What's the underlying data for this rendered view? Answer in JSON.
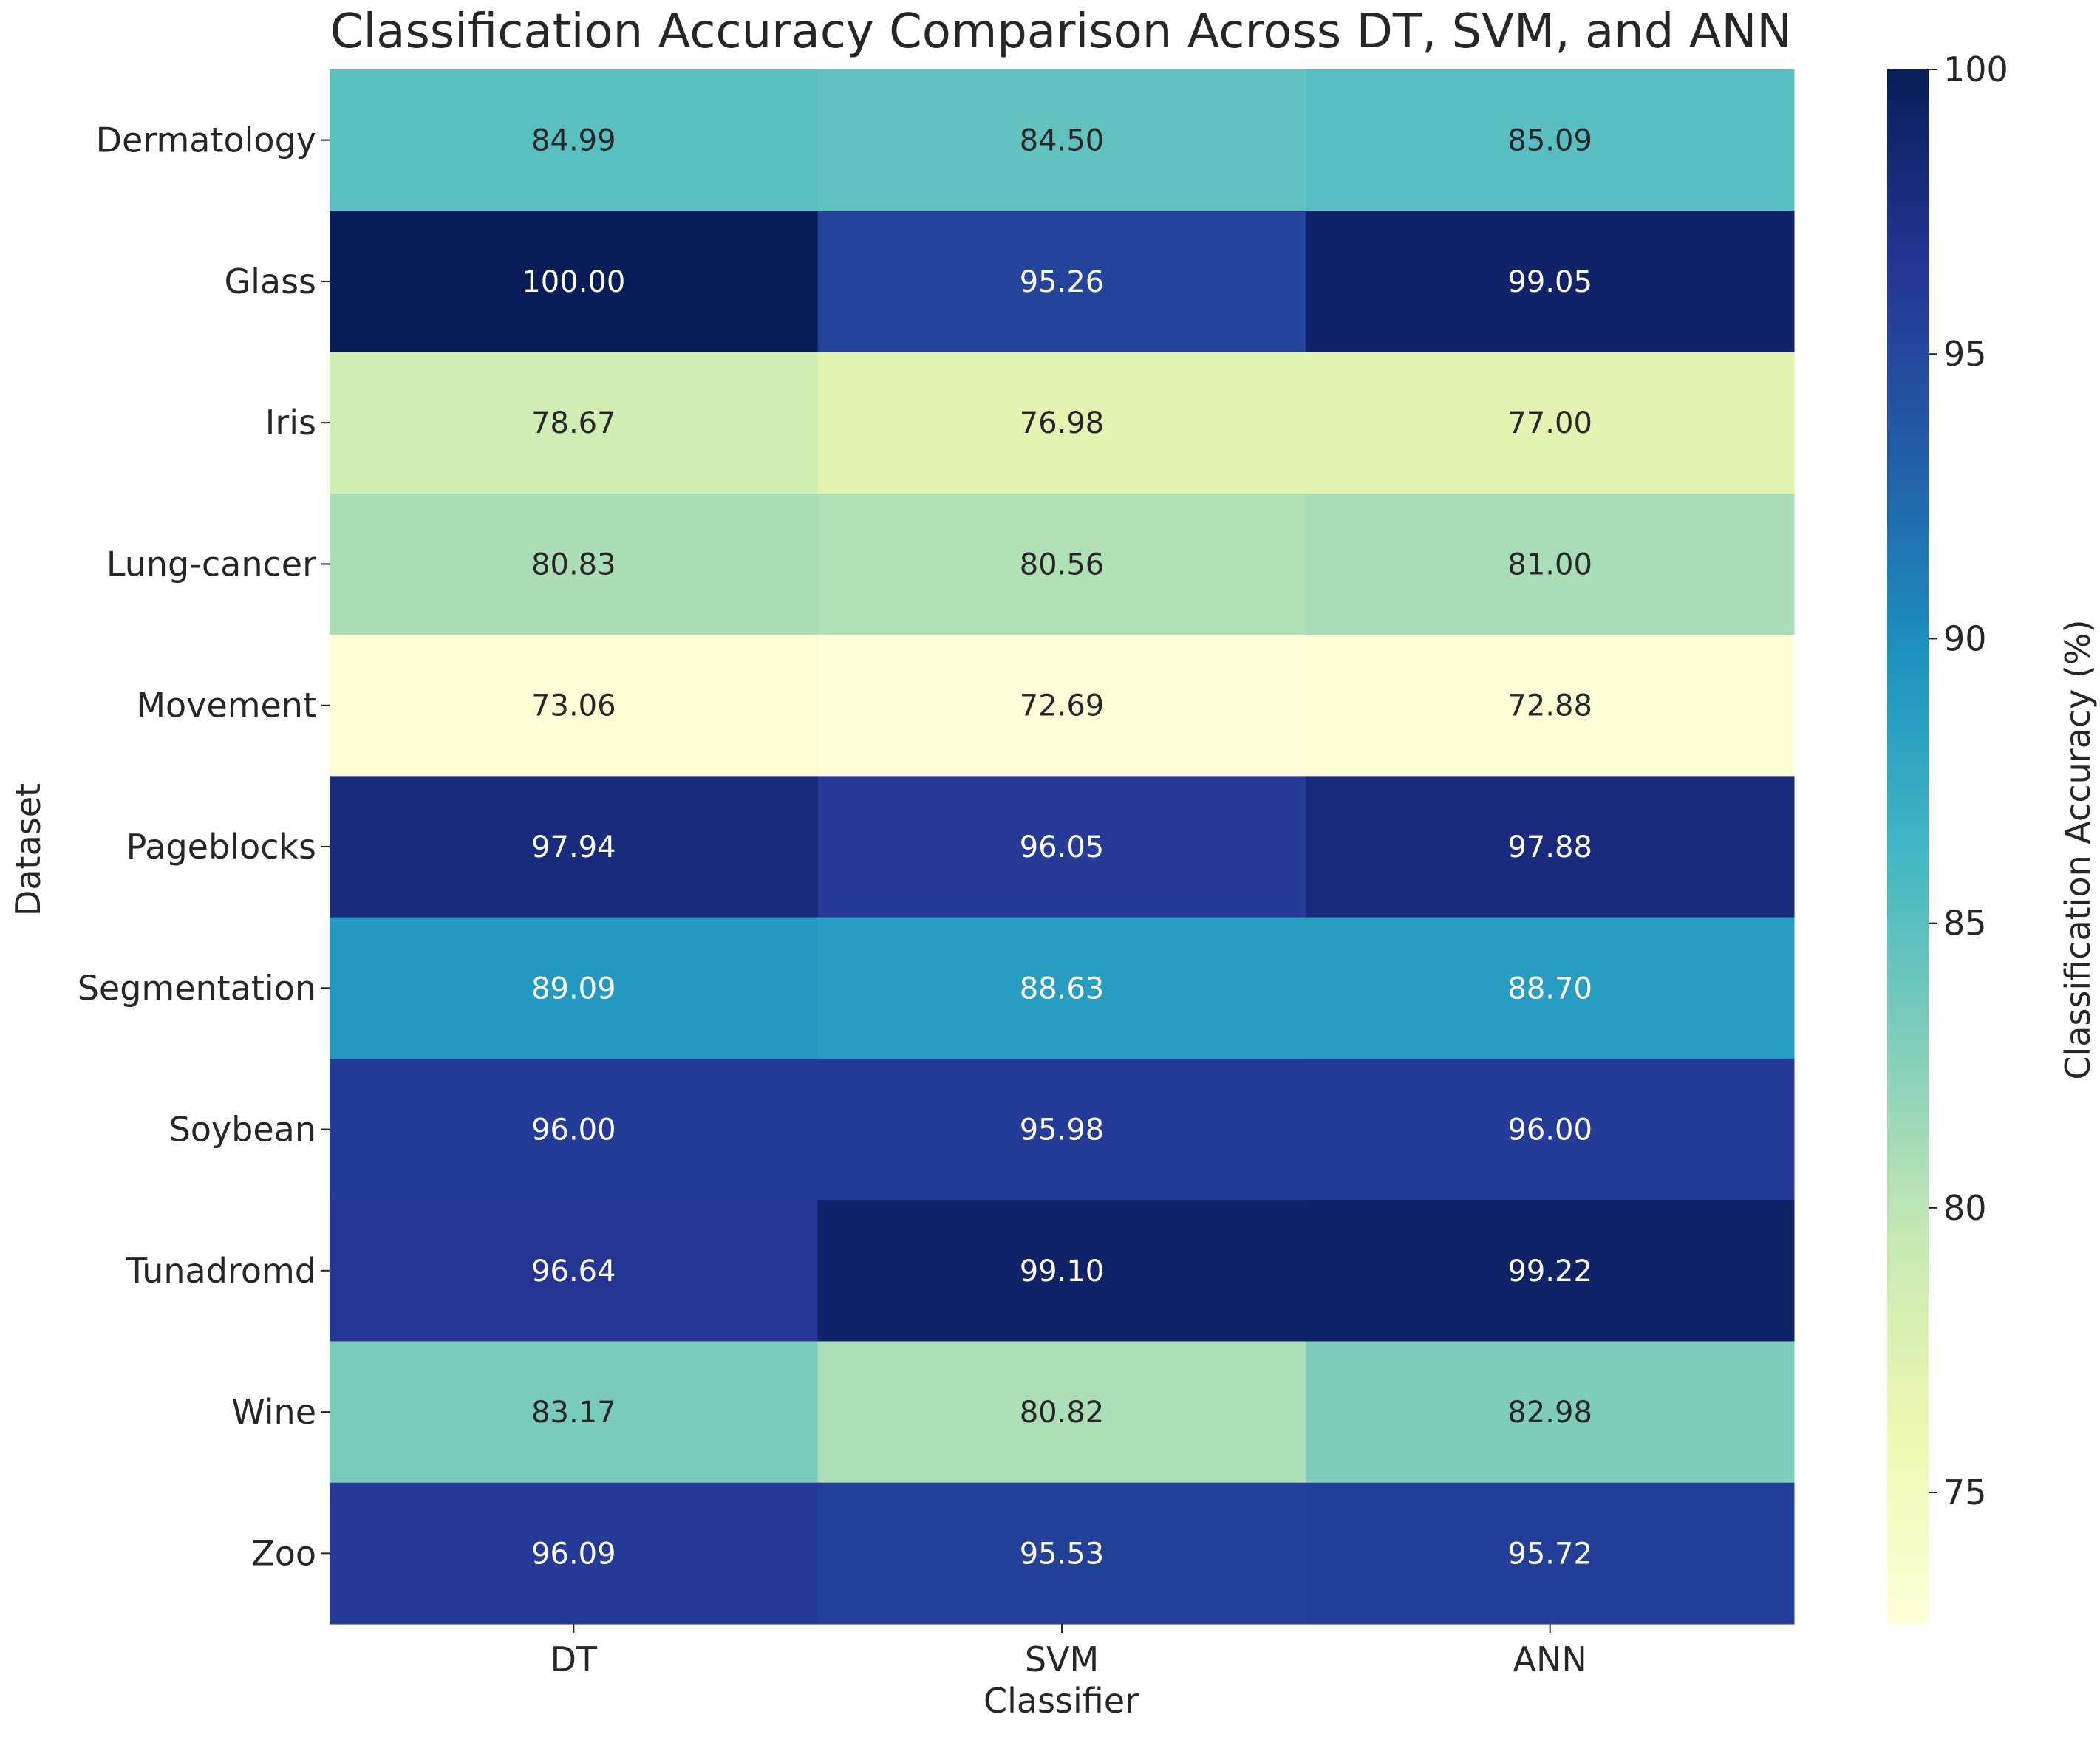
{
  "chart_data": {
    "type": "heatmap",
    "title": "Classification Accuracy Comparison Across DT, SVM, and ANN",
    "xlabel": "Classifier",
    "ylabel": "Dataset",
    "colorbar_label": "Classification Accuracy (%)",
    "colormap": "YlGnBu",
    "value_range": [
      72.69,
      100
    ],
    "colorbar_ticks": [
      75,
      80,
      85,
      90,
      95,
      100
    ],
    "x_categories": [
      "DT",
      "SVM",
      "ANN"
    ],
    "y_categories": [
      "Dermatology",
      "Glass",
      "Iris",
      "Lung-cancer",
      "Movement",
      "Pageblocks",
      "Segmentation",
      "Soybean",
      "Tunadromd",
      "Wine",
      "Zoo"
    ],
    "values": [
      [
        84.99,
        84.5,
        85.09
      ],
      [
        100.0,
        95.26,
        99.05
      ],
      [
        78.67,
        76.98,
        77.0
      ],
      [
        80.83,
        80.56,
        81.0
      ],
      [
        73.06,
        72.69,
        72.88
      ],
      [
        97.94,
        96.05,
        97.88
      ],
      [
        89.09,
        88.63,
        88.7
      ],
      [
        96.0,
        95.98,
        96.0
      ],
      [
        96.64,
        99.1,
        99.22
      ],
      [
        83.17,
        80.82,
        82.98
      ],
      [
        96.09,
        95.53,
        95.72
      ]
    ],
    "value_format": "2 decimals"
  }
}
